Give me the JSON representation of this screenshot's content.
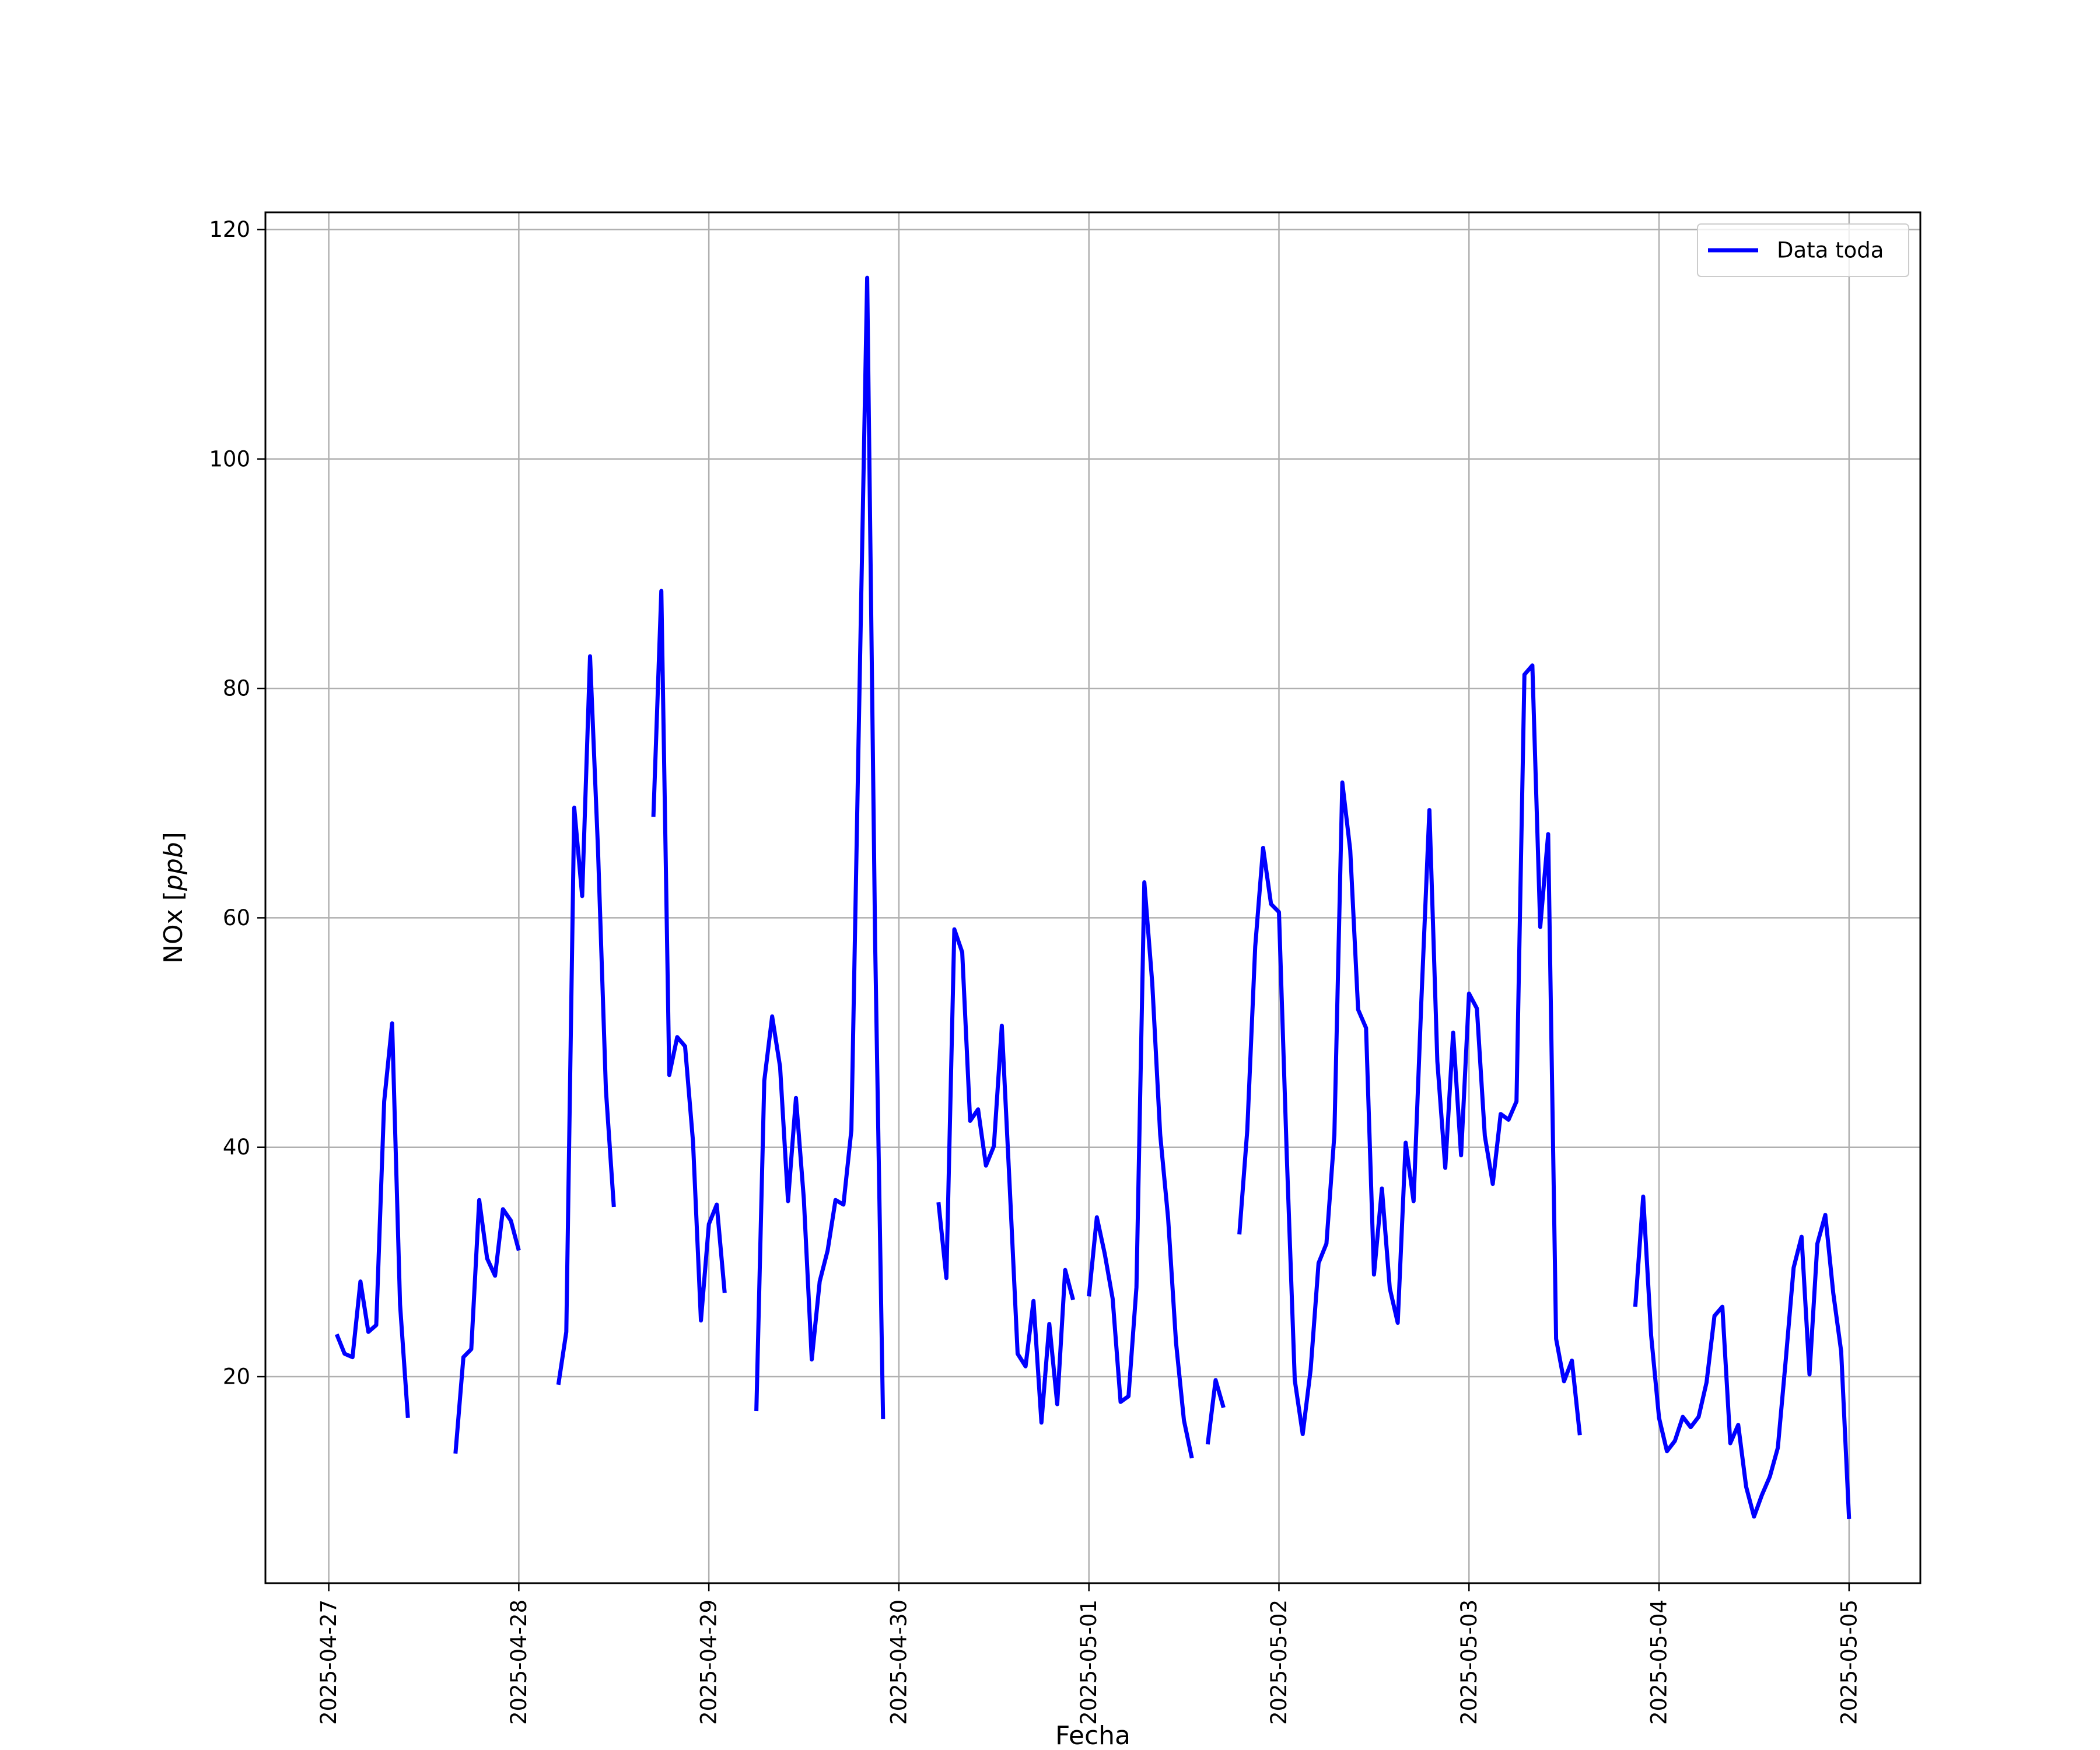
{
  "chart_data": {
    "type": "line",
    "title": "",
    "xlabel": "Fecha",
    "ylabel": "NOx [ppb]",
    "ylabel_main": "NOx [",
    "ylabel_unit": "ppb",
    "ylabel_close": "]",
    "xlim": [
      "2025-04-26 16:00",
      "2025-05-05 09:00"
    ],
    "ylim": [
      2,
      121.5
    ],
    "yticks": [
      20,
      40,
      60,
      80,
      100,
      120
    ],
    "xticks": [
      "2025-04-27",
      "2025-04-28",
      "2025-04-29",
      "2025-04-30",
      "2025-05-01",
      "2025-05-02",
      "2025-05-03",
      "2025-05-04",
      "2025-05-05"
    ],
    "grid": true,
    "legend_position": "top-right",
    "line_color": "#0000ff",
    "series": [
      {
        "name": "Data toda",
        "segments": [
          [
            [
              "2025-04-27 01:00",
              23.7
            ],
            [
              "2025-04-27 02:00",
              22.0
            ],
            [
              "2025-04-27 03:00",
              21.7
            ],
            [
              "2025-04-27 04:00",
              28.3
            ],
            [
              "2025-04-27 05:00",
              23.9
            ],
            [
              "2025-04-27 06:00",
              24.5
            ],
            [
              "2025-04-27 07:00",
              44.0
            ],
            [
              "2025-04-27 08:00",
              50.8
            ],
            [
              "2025-04-27 09:00",
              26.3
            ],
            [
              "2025-04-27 10:00",
              16.4
            ]
          ],
          [
            [
              "2025-04-27 16:00",
              13.3
            ],
            [
              "2025-04-27 17:00",
              21.7
            ],
            [
              "2025-04-27 18:00",
              22.4
            ],
            [
              "2025-04-27 19:00",
              35.4
            ],
            [
              "2025-04-27 20:00",
              30.3
            ],
            [
              "2025-04-27 21:00",
              28.8
            ],
            [
              "2025-04-27 22:00",
              34.6
            ],
            [
              "2025-04-27 23:00",
              33.6
            ],
            [
              "2025-04-28 00:00",
              31.0
            ]
          ],
          [
            [
              "2025-04-28 05:00",
              19.3
            ],
            [
              "2025-04-28 06:00",
              23.9
            ],
            [
              "2025-04-28 07:00",
              69.6
            ],
            [
              "2025-04-28 08:00",
              61.9
            ],
            [
              "2025-04-28 09:00",
              82.8
            ],
            [
              "2025-04-28 10:00",
              66.0
            ],
            [
              "2025-04-28 11:00",
              45.0
            ],
            [
              "2025-04-28 12:00",
              34.8
            ]
          ],
          [
            [
              "2025-04-28 17:00",
              68.8
            ],
            [
              "2025-04-28 18:00",
              88.5
            ],
            [
              "2025-04-28 19:00",
              46.3
            ],
            [
              "2025-04-28 20:00",
              49.6
            ],
            [
              "2025-04-28 21:00",
              48.8
            ],
            [
              "2025-04-28 22:00",
              40.5
            ],
            [
              "2025-04-28 23:00",
              24.9
            ],
            [
              "2025-04-29 00:00",
              33.3
            ],
            [
              "2025-04-29 01:00",
              35.0
            ],
            [
              "2025-04-29 02:00",
              27.3
            ]
          ],
          [
            [
              "2025-04-29 06:00",
              17.0
            ],
            [
              "2025-04-29 07:00",
              45.8
            ],
            [
              "2025-04-29 08:00",
              51.4
            ],
            [
              "2025-04-29 09:00",
              47.0
            ],
            [
              "2025-04-29 10:00",
              35.3
            ],
            [
              "2025-04-29 11:00",
              44.3
            ],
            [
              "2025-04-29 12:00",
              35.5
            ],
            [
              "2025-04-29 13:00",
              21.5
            ],
            [
              "2025-04-29 14:00",
              28.3
            ],
            [
              "2025-04-29 15:00",
              31.0
            ],
            [
              "2025-04-29 16:00",
              35.4
            ],
            [
              "2025-04-29 17:00",
              35.0
            ],
            [
              "2025-04-29 18:00",
              41.5
            ],
            [
              "2025-04-29 19:00",
              79.0
            ],
            [
              "2025-04-29 20:00",
              115.8
            ],
            [
              "2025-04-29 21:00",
              58.0
            ],
            [
              "2025-04-29 22:00",
              16.3
            ]
          ],
          [
            [
              "2025-04-30 05:00",
              35.2
            ],
            [
              "2025-04-30 06:00",
              28.6
            ],
            [
              "2025-04-30 07:00",
              59.0
            ],
            [
              "2025-04-30 08:00",
              57.0
            ],
            [
              "2025-04-30 09:00",
              42.3
            ],
            [
              "2025-04-30 10:00",
              43.3
            ],
            [
              "2025-04-30 11:00",
              38.4
            ],
            [
              "2025-04-30 12:00",
              40.1
            ],
            [
              "2025-04-30 13:00",
              50.6
            ],
            [
              "2025-04-30 14:00",
              36.5
            ],
            [
              "2025-04-30 15:00",
              22.0
            ],
            [
              "2025-04-30 16:00",
              20.9
            ],
            [
              "2025-04-30 17:00",
              26.6
            ],
            [
              "2025-04-30 18:00",
              16.0
            ],
            [
              "2025-04-30 19:00",
              24.6
            ],
            [
              "2025-04-30 20:00",
              17.6
            ],
            [
              "2025-04-30 21:00",
              29.3
            ],
            [
              "2025-04-30 22:00",
              26.7
            ]
          ],
          [
            [
              "2025-05-01 00:00",
              27.0
            ],
            [
              "2025-05-01 01:00",
              33.9
            ],
            [
              "2025-05-01 02:00",
              30.7
            ],
            [
              "2025-05-01 03:00",
              26.8
            ],
            [
              "2025-05-01 04:00",
              17.8
            ],
            [
              "2025-05-01 05:00",
              18.3
            ],
            [
              "2025-05-01 06:00",
              27.8
            ],
            [
              "2025-05-01 07:00",
              63.1
            ],
            [
              "2025-05-01 08:00",
              54.3
            ],
            [
              "2025-05-01 09:00",
              41.1
            ],
            [
              "2025-05-01 10:00",
              33.8
            ],
            [
              "2025-05-01 11:00",
              23.0
            ],
            [
              "2025-05-01 12:00",
              16.2
            ],
            [
              "2025-05-01 13:00",
              12.9
            ]
          ],
          [
            [
              "2025-05-01 15:00",
              14.1
            ],
            [
              "2025-05-01 16:00",
              19.7
            ],
            [
              "2025-05-01 17:00",
              17.3
            ]
          ],
          [
            [
              "2025-05-01 19:00",
              32.4
            ],
            [
              "2025-05-01 20:00",
              41.5
            ],
            [
              "2025-05-01 21:00",
              57.5
            ],
            [
              "2025-05-01 22:00",
              66.1
            ],
            [
              "2025-05-01 23:00",
              61.2
            ],
            [
              "2025-05-02 00:00",
              60.5
            ],
            [
              "2025-05-02 01:00",
              39.0
            ],
            [
              "2025-05-02 02:00",
              19.7
            ],
            [
              "2025-05-02 03:00",
              15.0
            ],
            [
              "2025-05-02 04:00",
              20.6
            ],
            [
              "2025-05-02 05:00",
              29.9
            ],
            [
              "2025-05-02 06:00",
              31.6
            ],
            [
              "2025-05-02 07:00",
              41.1
            ],
            [
              "2025-05-02 08:00",
              71.8
            ],
            [
              "2025-05-02 09:00",
              65.9
            ],
            [
              "2025-05-02 10:00",
              52.0
            ],
            [
              "2025-05-02 11:00",
              50.4
            ],
            [
              "2025-05-02 12:00",
              28.9
            ],
            [
              "2025-05-02 13:00",
              36.4
            ],
            [
              "2025-05-02 14:00",
              27.7
            ],
            [
              "2025-05-02 15:00",
              24.7
            ],
            [
              "2025-05-02 16:00",
              40.4
            ],
            [
              "2025-05-02 17:00",
              35.3
            ],
            [
              "2025-05-02 18:00",
              53.0
            ],
            [
              "2025-05-02 19:00",
              69.4
            ],
            [
              "2025-05-02 20:00",
              47.5
            ],
            [
              "2025-05-02 21:00",
              38.2
            ],
            [
              "2025-05-02 22:00",
              50.0
            ],
            [
              "2025-05-02 23:00",
              39.3
            ],
            [
              "2025-05-03 00:00",
              53.4
            ],
            [
              "2025-05-03 01:00",
              52.1
            ],
            [
              "2025-05-03 02:00",
              41.0
            ],
            [
              "2025-05-03 03:00",
              36.8
            ],
            [
              "2025-05-03 04:00",
              42.9
            ],
            [
              "2025-05-03 05:00",
              42.4
            ],
            [
              "2025-05-03 06:00",
              44.0
            ],
            [
              "2025-05-03 07:00",
              81.2
            ],
            [
              "2025-05-03 08:00",
              82.0
            ],
            [
              "2025-05-03 09:00",
              59.2
            ],
            [
              "2025-05-03 10:00",
              67.3
            ],
            [
              "2025-05-03 11:00",
              23.3
            ],
            [
              "2025-05-03 12:00",
              19.6
            ],
            [
              "2025-05-03 13:00",
              21.4
            ],
            [
              "2025-05-03 14:00",
              14.9
            ]
          ],
          [
            [
              "2025-05-03 21:00",
              26.1
            ],
            [
              "2025-05-03 22:00",
              35.7
            ],
            [
              "2025-05-03 23:00",
              23.6
            ],
            [
              "2025-05-04 00:00",
              16.4
            ],
            [
              "2025-05-04 01:00",
              13.5
            ],
            [
              "2025-05-04 02:00",
              14.4
            ],
            [
              "2025-05-04 03:00",
              16.5
            ],
            [
              "2025-05-04 04:00",
              15.6
            ],
            [
              "2025-05-04 05:00",
              16.5
            ],
            [
              "2025-05-04 06:00",
              19.5
            ],
            [
              "2025-05-04 07:00",
              25.3
            ],
            [
              "2025-05-04 08:00",
              26.1
            ],
            [
              "2025-05-04 09:00",
              14.2
            ],
            [
              "2025-05-04 10:00",
              15.8
            ],
            [
              "2025-05-04 11:00",
              10.4
            ],
            [
              "2025-05-04 12:00",
              7.8
            ],
            [
              "2025-05-04 13:00",
              9.7
            ],
            [
              "2025-05-04 14:00",
              11.3
            ],
            [
              "2025-05-04 15:00",
              13.8
            ],
            [
              "2025-05-04 16:00",
              21.4
            ],
            [
              "2025-05-04 17:00",
              29.5
            ],
            [
              "2025-05-04 18:00",
              32.2
            ],
            [
              "2025-05-04 19:00",
              20.2
            ],
            [
              "2025-05-04 20:00",
              31.6
            ],
            [
              "2025-05-04 21:00",
              34.1
            ],
            [
              "2025-05-04 22:00",
              27.3
            ],
            [
              "2025-05-04 23:00",
              22.2
            ],
            [
              "2025-05-05 00:00",
              7.6
            ]
          ]
        ]
      }
    ]
  }
}
